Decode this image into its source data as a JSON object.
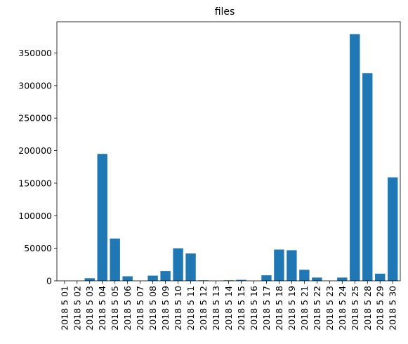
{
  "chart_data": {
    "type": "bar",
    "title": "files",
    "xlabel": "",
    "ylabel": "",
    "ylim": [
      0,
      398000
    ],
    "yticks": [
      0,
      50000,
      100000,
      150000,
      200000,
      250000,
      300000,
      350000
    ],
    "grid": false,
    "bar_color": "#1f77b4",
    "categories": [
      "2018 5 01",
      "2018 5 02",
      "2018 5 03",
      "2018 5 04",
      "2018 5 05",
      "2018 5 06",
      "2018 5 07",
      "2018 5 08",
      "2018 5 09",
      "2018 5 10",
      "2018 5 11",
      "2018 5 12",
      "2018 5 13",
      "2018 5 14",
      "2018 5 15",
      "2018 5 16",
      "2018 5 17",
      "2018 5 18",
      "2018 5 19",
      "2018 5 21",
      "2018 5 22",
      "2018 5 23",
      "2018 5 24",
      "2018 5 25",
      "2018 5 28",
      "2018 5 29",
      "2018 5 30"
    ],
    "values": [
      0,
      0,
      4000,
      195000,
      65000,
      7000,
      0,
      8000,
      15000,
      50000,
      42000,
      800,
      0,
      800,
      1500,
      0,
      8500,
      48000,
      47000,
      17000,
      5000,
      0,
      5000,
      379000,
      319000,
      11000,
      159000
    ]
  }
}
